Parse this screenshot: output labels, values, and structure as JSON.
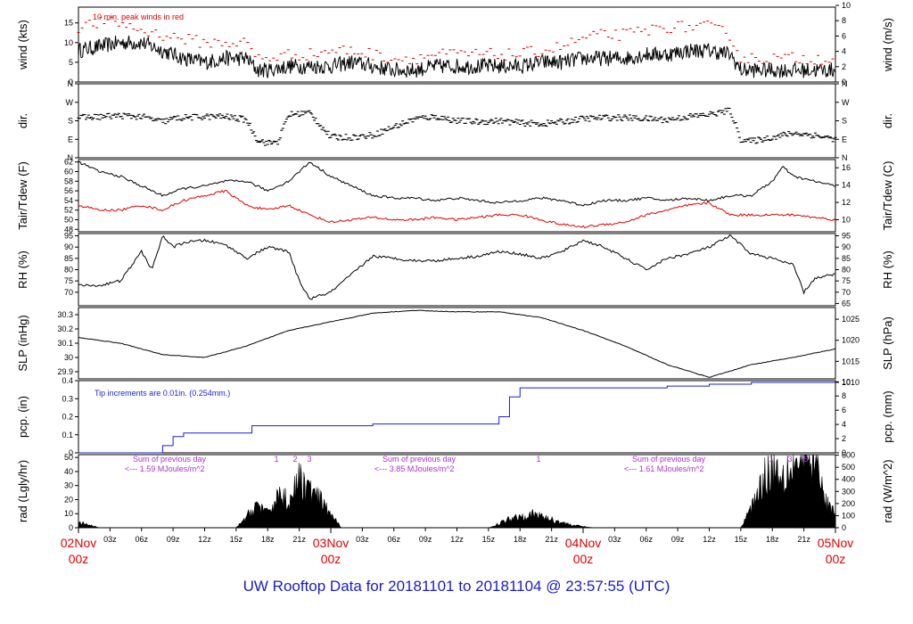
{
  "chart_data": [
    {
      "type": "line",
      "id": "wind",
      "ylabel_left": "wind (kts)",
      "ylabel_right": "wind (m/s)",
      "left_ticks": [
        0,
        5,
        10,
        15
      ],
      "right_ticks": [
        0,
        2,
        4,
        6,
        8,
        10
      ],
      "ylim": [
        0,
        19
      ],
      "annotation": "10 min. peak winds in red",
      "series": [
        {
          "name": "10 min wind (kts)",
          "color": "#000000",
          "x": [
            0,
            2,
            4,
            6,
            8,
            10,
            12,
            14,
            16,
            17,
            18,
            20,
            22,
            24,
            26,
            28,
            30,
            32,
            34,
            36,
            38,
            40,
            42,
            44,
            46,
            48,
            50,
            52,
            54,
            56,
            58,
            60,
            62,
            63,
            64,
            66,
            68,
            70,
            72
          ],
          "values": [
            8,
            9,
            10,
            10,
            8,
            6,
            5,
            6,
            6,
            3,
            3,
            4,
            4,
            4,
            5,
            4,
            3,
            3,
            4,
            4,
            4,
            4,
            4,
            5,
            5,
            6,
            6,
            6,
            7,
            7,
            8,
            8,
            7,
            3,
            3,
            3,
            3,
            3,
            3
          ]
        },
        {
          "name": "peak wind (kts)",
          "color": "#e00000",
          "x": [
            0,
            2,
            4,
            6,
            8,
            10,
            12,
            14,
            16,
            17,
            18,
            20,
            22,
            24,
            26,
            28,
            30,
            32,
            34,
            36,
            38,
            40,
            42,
            44,
            46,
            48,
            50,
            52,
            54,
            56,
            58,
            60,
            62,
            63,
            64,
            66,
            68,
            70,
            72
          ],
          "values": [
            14,
            15,
            15,
            13,
            12,
            11,
            10,
            10,
            10,
            6,
            6,
            7,
            7,
            8,
            8,
            7,
            6,
            6,
            7,
            7,
            7,
            7,
            7,
            8,
            9,
            11,
            12,
            12,
            13,
            14,
            14,
            14,
            12,
            6,
            6,
            6,
            6,
            6,
            6
          ]
        }
      ]
    },
    {
      "type": "scatter",
      "id": "dir",
      "ylabel_left": "dir.",
      "ylabel_right": "dir.",
      "left_ticks": [
        "N",
        "E",
        "S",
        "W",
        "N"
      ],
      "right_ticks": [
        "N",
        "E",
        "S",
        "W",
        "N"
      ],
      "ylim": [
        0,
        360
      ],
      "series": [
        {
          "name": "wind direction (deg)",
          "x": [
            0,
            2,
            4,
            6,
            8,
            9,
            10,
            12,
            14,
            16,
            17,
            18,
            19,
            20,
            21,
            22,
            24,
            26,
            28,
            30,
            32,
            34,
            36,
            38,
            40,
            42,
            44,
            46,
            48,
            50,
            52,
            54,
            56,
            58,
            60,
            62,
            63,
            64,
            66,
            68,
            70,
            72
          ],
          "values": [
            195,
            200,
            205,
            200,
            175,
            190,
            195,
            200,
            200,
            185,
            90,
            70,
            80,
            210,
            215,
            220,
            100,
            100,
            110,
            150,
            190,
            200,
            180,
            175,
            180,
            170,
            165,
            175,
            190,
            195,
            195,
            190,
            185,
            200,
            210,
            230,
            90,
            80,
            100,
            120,
            110,
            90
          ]
        }
      ]
    },
    {
      "type": "line",
      "id": "temp",
      "ylabel_left": "Tair/Tdew (F)",
      "ylabel_right": "Tair/Tdew (C)",
      "left_ticks": [
        48,
        50,
        52,
        54,
        56,
        58,
        60,
        62
      ],
      "right_ticks": [
        10,
        12,
        14,
        16
      ],
      "ylim": [
        47.5,
        62.5
      ],
      "series": [
        {
          "name": "Tair (F)",
          "color": "#000000",
          "x": [
            0,
            2,
            4,
            6,
            8,
            10,
            12,
            14,
            16,
            18,
            20,
            22,
            24,
            26,
            28,
            30,
            32,
            34,
            36,
            38,
            40,
            42,
            44,
            46,
            48,
            50,
            52,
            54,
            56,
            58,
            60,
            62,
            64,
            66,
            67,
            68,
            70,
            72
          ],
          "values": [
            62,
            60,
            59,
            57,
            55,
            56.5,
            57,
            58,
            58,
            56,
            58,
            62,
            59,
            57,
            55,
            54.5,
            54.5,
            54,
            54.5,
            54,
            53.5,
            54,
            54.5,
            54,
            53,
            54,
            54,
            54.5,
            54,
            54.5,
            54,
            55,
            55,
            58,
            61,
            59,
            58,
            57
          ]
        },
        {
          "name": "Tdew (F)",
          "color": "#e00000",
          "x": [
            0,
            2,
            4,
            6,
            8,
            10,
            12,
            14,
            16,
            18,
            20,
            22,
            24,
            26,
            28,
            30,
            32,
            34,
            36,
            38,
            40,
            42,
            44,
            46,
            48,
            50,
            52,
            54,
            56,
            58,
            60,
            62,
            64,
            66,
            68,
            70,
            72
          ],
          "values": [
            53,
            52,
            52,
            53,
            52,
            54,
            55,
            56,
            53,
            52,
            53,
            51,
            49.5,
            50,
            50.5,
            50,
            50,
            50.5,
            50,
            50.5,
            51,
            51,
            50,
            49,
            48.5,
            49,
            49.5,
            51,
            52,
            53,
            53.5,
            51,
            51,
            51,
            51,
            50.5,
            50
          ]
        }
      ]
    },
    {
      "type": "line",
      "id": "rh",
      "ylabel_left": "RH (%)",
      "ylabel_right": "RH (%)",
      "left_ticks": [
        70,
        75,
        80,
        85,
        90,
        95
      ],
      "right_ticks": [
        65,
        70,
        75,
        80,
        85,
        90,
        95
      ],
      "ylim": [
        64,
        96
      ],
      "series": [
        {
          "name": "RH (%)",
          "color": "#000000",
          "x": [
            0,
            2,
            4,
            6,
            7,
            8,
            9,
            10,
            12,
            14,
            16,
            18,
            20,
            21,
            22,
            24,
            26,
            28,
            30,
            32,
            34,
            36,
            38,
            40,
            42,
            44,
            46,
            48,
            50,
            52,
            54,
            56,
            58,
            60,
            62,
            64,
            66,
            68,
            69,
            70,
            72
          ],
          "values": [
            73,
            73,
            75,
            88,
            80,
            95,
            90,
            92,
            93,
            91,
            85,
            90,
            88,
            75,
            67,
            70,
            78,
            86,
            85,
            84,
            84,
            85,
            86,
            88,
            87,
            85,
            88,
            93,
            90,
            85,
            80,
            85,
            87,
            90,
            95,
            87,
            85,
            82,
            70,
            76,
            78
          ]
        }
      ]
    },
    {
      "type": "line",
      "id": "slp",
      "ylabel_left": "SLP (inHg)",
      "ylabel_right": "SLP (hPa)",
      "left_ticks": [
        29.9,
        30.0,
        30.1,
        30.2,
        30.3
      ],
      "right_ticks": [
        1010,
        1015,
        1020,
        1025
      ],
      "ylim": [
        29.85,
        30.35
      ],
      "series": [
        {
          "name": "SLP (inHg)",
          "color": "#000000",
          "x": [
            0,
            4,
            8,
            12,
            16,
            20,
            24,
            28,
            32,
            36,
            40,
            44,
            48,
            52,
            56,
            60,
            64,
            68,
            72
          ],
          "values": [
            30.14,
            30.1,
            30.02,
            30.0,
            30.08,
            30.19,
            30.25,
            30.31,
            30.33,
            30.32,
            30.32,
            30.28,
            30.19,
            30.08,
            29.95,
            29.86,
            29.95,
            30.0,
            30.06
          ]
        }
      ]
    },
    {
      "type": "line",
      "id": "pcp",
      "ylabel_left": "pcp. (in)",
      "ylabel_right": "pcp. (mm)",
      "left_ticks": [
        0.0,
        0.1,
        0.2,
        0.3,
        0.4
      ],
      "right_ticks": [
        0,
        2,
        4,
        6,
        8,
        10
      ],
      "ylim": [
        0,
        0.4
      ],
      "annotation": "Tip increments are 0.01in. (0.254mm.)",
      "series": [
        {
          "name": "cumulative precip (in)",
          "color": "#1f1fd9",
          "x": [
            0,
            7,
            8,
            9,
            10,
            12,
            16,
            16.5,
            20,
            24,
            28,
            32,
            36,
            38,
            40,
            41,
            42,
            44,
            48,
            52,
            56,
            60,
            62,
            64,
            72
          ],
          "values": [
            0,
            0,
            0.04,
            0.09,
            0.11,
            0.11,
            0.11,
            0.15,
            0.15,
            0.15,
            0.16,
            0.16,
            0.16,
            0.16,
            0.2,
            0.31,
            0.36,
            0.36,
            0.36,
            0.36,
            0.37,
            0.38,
            0.38,
            0.39,
            0.39
          ]
        }
      ]
    },
    {
      "type": "area",
      "id": "rad",
      "ylabel_left": "rad (Lgly/hr)",
      "ylabel_right": "rad (W/m^2)",
      "left_ticks": [
        0,
        10,
        20,
        30,
        40,
        50
      ],
      "right_ticks": [
        0,
        100,
        200,
        300,
        400,
        500,
        600
      ],
      "ylim": [
        0,
        52
      ],
      "annotations": [
        "Sum of previous day",
        "<--- 1.59 MJoules/m^2",
        "Sum of previous day",
        "<--- 3.85 MJoules/m^2",
        "Sum of previous day",
        "<--- 1.61 MJoules/m^2"
      ],
      "top_marks": [
        "1",
        "2",
        "3",
        "1",
        "1",
        "3",
        "5"
      ],
      "series": [
        {
          "name": "solar radiation (Lgly/hr)",
          "color": "#000000",
          "x": [
            0,
            0.5,
            1,
            1.5,
            2,
            15,
            16,
            17,
            18,
            19,
            20,
            21,
            22,
            23,
            24,
            25,
            39,
            40,
            41,
            42,
            43,
            44,
            45,
            46,
            47,
            48,
            49,
            63,
            64,
            65,
            66,
            67,
            68,
            69,
            70,
            71,
            72
          ],
          "values": [
            4,
            3,
            2,
            1,
            0,
            0,
            8,
            18,
            10,
            25,
            20,
            35,
            28,
            20,
            10,
            0,
            0,
            3,
            7,
            9,
            10,
            9,
            6,
            4,
            2,
            1,
            0,
            0,
            15,
            35,
            45,
            40,
            50,
            48,
            55,
            20,
            10
          ]
        }
      ]
    }
  ],
  "x_axis": {
    "tick_labels": [
      "03z",
      "06z",
      "09z",
      "12z",
      "15z",
      "18z",
      "21z",
      "03z",
      "06z",
      "09z",
      "12z",
      "15z",
      "18z",
      "21z",
      "03z",
      "06z",
      "09z",
      "12z",
      "15z",
      "18z",
      "21z"
    ],
    "day_labels": [
      {
        "day": "02Nov",
        "hour": "00z"
      },
      {
        "day": "03Nov",
        "hour": "00z"
      },
      {
        "day": "04Nov",
        "hour": "00z"
      },
      {
        "day": "05Nov",
        "hour": "00z"
      }
    ]
  },
  "footer": {
    "title": "UW Rooftop Data for 20181101  to  20181104 @ 23:57:55  (UTC)"
  },
  "colors": {
    "black": "#000000",
    "red": "#e00000",
    "blue": "#1f1fd9",
    "purple": "#aa33cc",
    "title_blue": "#1a1acc"
  }
}
